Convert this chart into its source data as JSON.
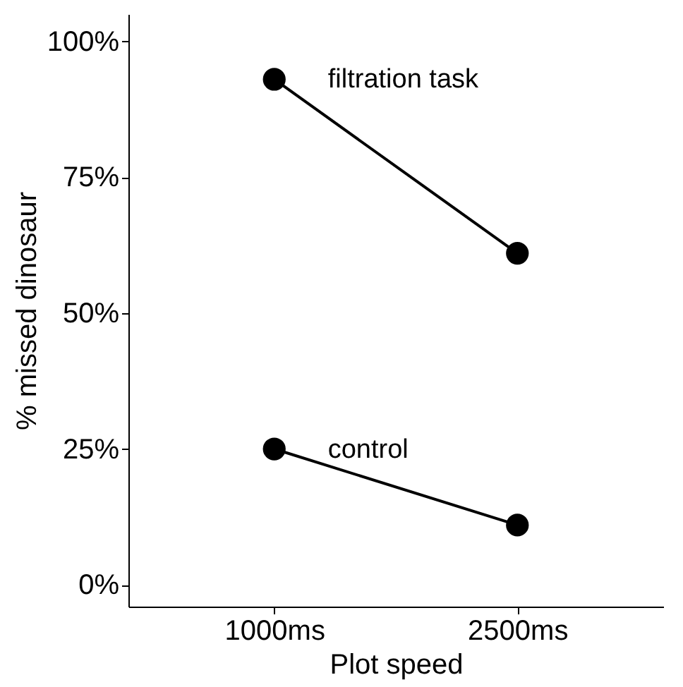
{
  "chart_data": {
    "type": "line",
    "xlabel": "Plot speed",
    "ylabel": "% missed dinosaur",
    "categories": [
      "1000ms",
      "2500ms"
    ],
    "series": [
      {
        "name": "filtration task",
        "color": "#000000",
        "values": [
          93,
          61
        ]
      },
      {
        "name": "control",
        "color": "#000000",
        "values": [
          25,
          11
        ]
      }
    ],
    "ylim": [
      -4,
      105
    ],
    "yticks": [
      {
        "value": 0,
        "label": "0%"
      },
      {
        "value": 25,
        "label": "25%"
      },
      {
        "value": 50,
        "label": "50%"
      },
      {
        "value": 75,
        "label": "75%"
      },
      {
        "value": 100,
        "label": "100%"
      }
    ],
    "grid": false,
    "marker": "circle",
    "line_style": "solid"
  }
}
